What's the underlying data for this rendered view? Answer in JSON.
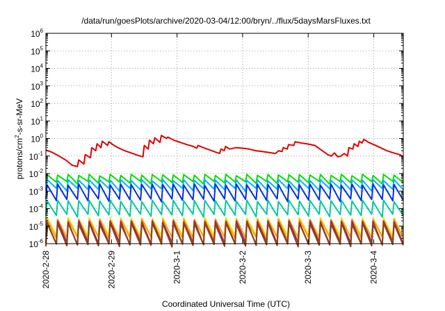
{
  "chart_data": {
    "type": "line",
    "title": "/data/run/goesPlots/archive/2020-03-04/12:00/bryn/../flux/5daysMarsFluxes.txt",
    "xlabel": "Coordinated Universal Time (UTC)",
    "ylabel": {
      "base": "protons/cm",
      "exponent": "2",
      "rest": "-s-sr-MeV"
    },
    "yscale": "log",
    "ylim_exponents": [
      -6,
      6
    ],
    "y_tick_labels": [
      {
        "base": "10",
        "exp": "6"
      },
      {
        "base": "10",
        "exp": "5"
      },
      {
        "base": "10",
        "exp": "4"
      },
      {
        "base": "10",
        "exp": "3"
      },
      {
        "base": "10",
        "exp": "2"
      },
      {
        "base": "10",
        "exp": "1"
      },
      {
        "base": "10",
        "exp": "0"
      },
      {
        "base": "10",
        "exp": "-1"
      },
      {
        "base": "10",
        "exp": "-2"
      },
      {
        "base": "10",
        "exp": "-3"
      },
      {
        "base": "10",
        "exp": "-4"
      },
      {
        "base": "10",
        "exp": "-5"
      },
      {
        "base": "10",
        "exp": "-6"
      }
    ],
    "x_tick_labels": [
      "2020-2-28",
      "2020-2-29",
      "2020-3-1",
      "2020-3-2",
      "2020-3-3",
      "2020-3-4"
    ],
    "x_tick_days": [
      0,
      1,
      2,
      3,
      4,
      5
    ],
    "xlim_days": [
      0,
      5.45
    ],
    "grid": true,
    "legend": "none",
    "series": [
      {
        "color": "#e00000",
        "points": [
          [
            0.0,
            0.22
          ],
          [
            0.1,
            0.16
          ],
          [
            0.2,
            0.1
          ],
          [
            0.3,
            0.06
          ],
          [
            0.4,
            0.03
          ],
          [
            0.48,
            0.025
          ],
          [
            0.5,
            0.06
          ],
          [
            0.58,
            0.035
          ],
          [
            0.6,
            0.12
          ],
          [
            0.68,
            0.08
          ],
          [
            0.7,
            0.3
          ],
          [
            0.76,
            0.2
          ],
          [
            0.78,
            0.5
          ],
          [
            0.84,
            0.3
          ],
          [
            0.86,
            0.7
          ],
          [
            0.94,
            0.4
          ],
          [
            0.96,
            0.65
          ],
          [
            1.04,
            0.4
          ],
          [
            1.1,
            0.3
          ],
          [
            1.2,
            0.2
          ],
          [
            1.3,
            0.15
          ],
          [
            1.4,
            0.11
          ],
          [
            1.48,
            0.09
          ],
          [
            1.5,
            0.4
          ],
          [
            1.56,
            0.25
          ],
          [
            1.58,
            0.8
          ],
          [
            1.64,
            0.5
          ],
          [
            1.66,
            1.1
          ],
          [
            1.74,
            0.6
          ],
          [
            1.76,
            1.5
          ],
          [
            1.84,
            1.0
          ],
          [
            1.86,
            1.2
          ],
          [
            1.95,
            0.8
          ],
          [
            2.05,
            0.6
          ],
          [
            2.15,
            0.45
          ],
          [
            2.25,
            0.35
          ],
          [
            2.3,
            0.28
          ],
          [
            2.32,
            0.4
          ],
          [
            2.4,
            0.3
          ],
          [
            2.5,
            0.22
          ],
          [
            2.6,
            0.16
          ],
          [
            2.65,
            0.14
          ],
          [
            2.67,
            0.25
          ],
          [
            2.72,
            0.2
          ],
          [
            2.74,
            0.35
          ],
          [
            2.8,
            0.25
          ],
          [
            2.9,
            0.3
          ],
          [
            3.0,
            0.28
          ],
          [
            3.1,
            0.25
          ],
          [
            3.2,
            0.2
          ],
          [
            3.3,
            0.18
          ],
          [
            3.4,
            0.16
          ],
          [
            3.5,
            0.14
          ],
          [
            3.55,
            0.2
          ],
          [
            3.6,
            0.18
          ],
          [
            3.62,
            0.3
          ],
          [
            3.68,
            0.25
          ],
          [
            3.7,
            0.45
          ],
          [
            3.78,
            0.4
          ],
          [
            3.8,
            0.65
          ],
          [
            3.9,
            0.55
          ],
          [
            4.0,
            0.48
          ],
          [
            4.1,
            0.4
          ],
          [
            4.2,
            0.22
          ],
          [
            4.3,
            0.12
          ],
          [
            4.35,
            0.1
          ],
          [
            4.4,
            0.15
          ],
          [
            4.45,
            0.09
          ],
          [
            4.5,
            0.1
          ],
          [
            4.55,
            0.14
          ],
          [
            4.6,
            0.1
          ],
          [
            4.62,
            0.3
          ],
          [
            4.68,
            0.25
          ],
          [
            4.7,
            0.5
          ],
          [
            4.76,
            0.35
          ],
          [
            4.78,
            0.7
          ],
          [
            4.82,
            0.55
          ],
          [
            4.85,
            0.9
          ],
          [
            4.92,
            0.6
          ],
          [
            5.0,
            0.45
          ],
          [
            5.1,
            0.3
          ],
          [
            5.2,
            0.2
          ],
          [
            5.3,
            0.15
          ],
          [
            5.4,
            0.12
          ],
          [
            5.45,
            0.09
          ]
        ]
      },
      {
        "color": "#00e000",
        "hi": 0.009,
        "lo": 0.003
      },
      {
        "color": "#00b0ff",
        "hi": 0.0045,
        "lo": 0.0012
      },
      {
        "color": "#0030e0",
        "hi": 0.0025,
        "lo": 0.0003
      },
      {
        "color": "#00c8a0",
        "hi": 0.0003,
        "lo": 4e-05
      },
      {
        "color": "#e8e800",
        "hi": 3e-05,
        "lo": 2.5e-06
      },
      {
        "color": "#ffa000",
        "hi": 2.5e-05,
        "lo": 2e-06
      },
      {
        "color": "#a02080",
        "hi": 2e-05,
        "lo": 1e-06
      },
      {
        "color": "#8b4513",
        "hi": 1.5e-05,
        "lo": 8e-07
      }
    ],
    "sawtooth_cycles": 34
  }
}
